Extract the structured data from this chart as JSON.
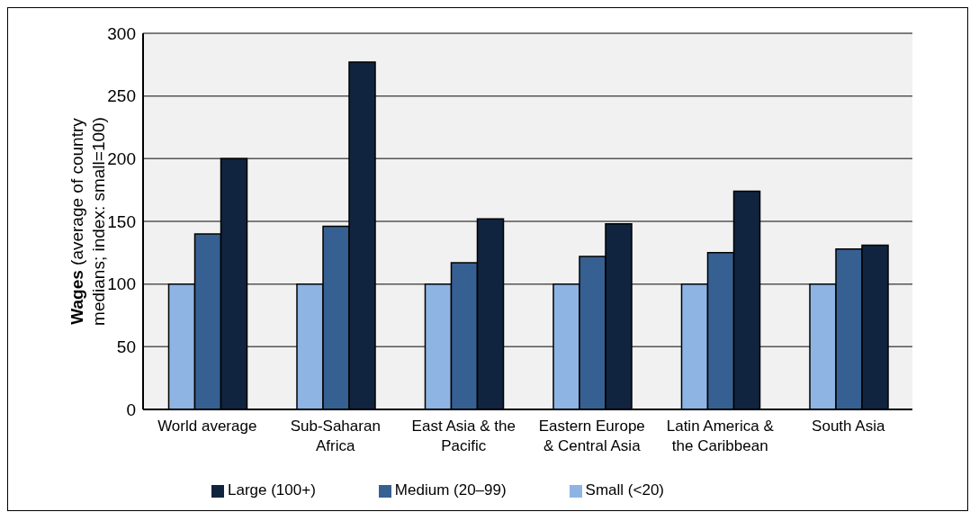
{
  "chart_data": {
    "type": "bar",
    "ylabel": "Wages (average of country medians; index: small=100)",
    "categories": [
      "World average",
      "Sub-Saharan Africa",
      "East Asia & the Pacific",
      "Eastern Europe & Central Asia",
      "Latin America & the Caribbean",
      "South Asia"
    ],
    "series": [
      {
        "name": "Small (<20)",
        "color": "#8eb4e3",
        "values": [
          100,
          100,
          100,
          100,
          100,
          100
        ]
      },
      {
        "name": "Medium (20–99)",
        "color": "#376092",
        "values": [
          140,
          146,
          117,
          122,
          125,
          128
        ]
      },
      {
        "name": "Large (100+)",
        "color": "#10243f",
        "values": [
          200,
          277,
          152,
          148,
          174,
          131
        ]
      }
    ],
    "ylim": [
      0,
      300
    ],
    "yticks": [
      0,
      50,
      100,
      150,
      200,
      250,
      300
    ],
    "grid": "y",
    "legend": "bottom"
  }
}
